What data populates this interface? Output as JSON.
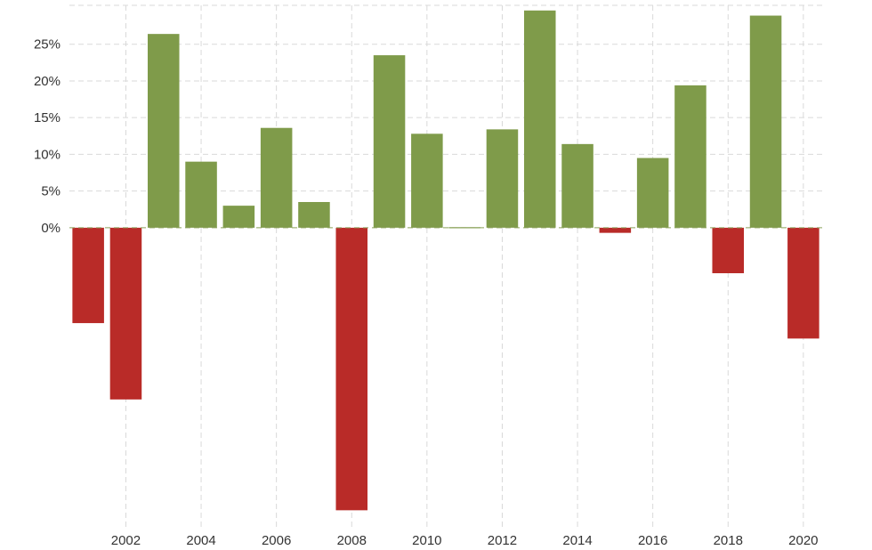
{
  "chart_data": {
    "type": "bar",
    "title": "",
    "xlabel": "",
    "ylabel": "",
    "x": [
      2001,
      2002,
      2003,
      2004,
      2005,
      2006,
      2007,
      2008,
      2009,
      2010,
      2011,
      2012,
      2013,
      2014,
      2015,
      2016,
      2017,
      2018,
      2019,
      2020
    ],
    "values": [
      -13.0,
      -23.4,
      26.4,
      9.0,
      3.0,
      13.6,
      3.5,
      -38.5,
      23.5,
      12.8,
      0.0,
      13.4,
      29.6,
      11.4,
      -0.7,
      9.5,
      19.4,
      -6.2,
      28.9,
      -15.1
    ],
    "ylim": [
      -38.7,
      30.3
    ],
    "y_ticks": [
      0,
      5,
      10,
      15,
      20,
      25
    ],
    "y_tick_labels": [
      "0%",
      "5%",
      "10%",
      "15%",
      "20%",
      "25%"
    ],
    "x_ticks": [
      2002,
      2004,
      2006,
      2008,
      2010,
      2012,
      2014,
      2016,
      2018,
      2020
    ],
    "x_tick_labels": [
      "2002",
      "2004",
      "2006",
      "2008",
      "2010",
      "2012",
      "2014",
      "2016",
      "2018",
      "2020"
    ],
    "grid": true,
    "colors": {
      "positive": "#7f9b4a",
      "negative": "#b92b28",
      "grid": "#d9d9d9"
    }
  }
}
